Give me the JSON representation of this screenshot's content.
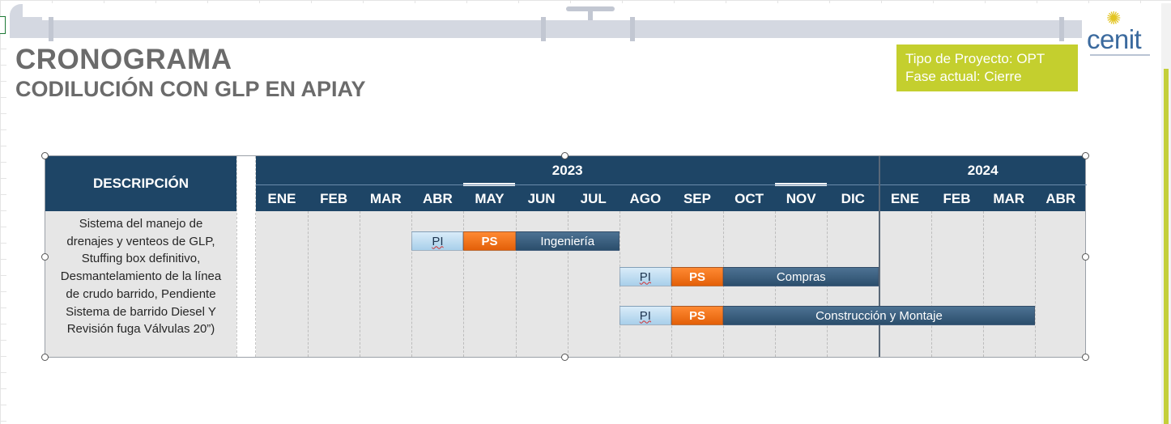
{
  "slide": {
    "title": "CRONOGRAMA",
    "subtitle": "CODILUCIÓN CON GLP EN APIAY",
    "colors": {
      "title": "#6b6b6b",
      "accent_green": "#c4cf2e",
      "header_blue": "#1e4566",
      "orange": "#f0781e"
    }
  },
  "info_box": {
    "line1": "Tipo de Proyecto: OPT",
    "line2": "Fase actual: Cierre"
  },
  "logo": {
    "text": "cenit",
    "icon": "sun-icon"
  },
  "table": {
    "description_header": "DESCRIPCIÓN",
    "years": [
      "2023",
      "2024"
    ],
    "months": [
      "ENE",
      "FEB",
      "MAR",
      "ABR",
      "MAY",
      "JUN",
      "JUL",
      "AGO",
      "SEP",
      "OCT",
      "NOV",
      "DIC",
      "ENE",
      "FEB",
      "MAR",
      "ABR"
    ],
    "description_lines": [
      "Sistema del manejo de",
      "drenajes y venteos de GLP,",
      "Stuffing box definitivo,",
      "Desmantelamiento de la línea",
      "de crudo barrido, Pendiente",
      "Sistema de barrido Diesel Y",
      "Revisión fuga Válvulas 20”)"
    ]
  },
  "chart_data": {
    "type": "gantt",
    "rows": [
      {
        "label": "Ingeniería",
        "pi": "PI",
        "ps": "PS",
        "pi_start_month": 4,
        "ps_start_month": 5,
        "phase_start_month": 6,
        "end_month": 8
      },
      {
        "label": "Compras",
        "pi": "PI",
        "ps": "PS",
        "pi_start_month": 8,
        "ps_start_month": 9,
        "phase_start_month": 10,
        "end_month": 13
      },
      {
        "label": "Construcción y Montaje",
        "pi": "PI",
        "ps": "PS",
        "pi_start_month": 8,
        "ps_start_month": 9,
        "phase_start_month": 10,
        "end_month": 16
      }
    ]
  }
}
